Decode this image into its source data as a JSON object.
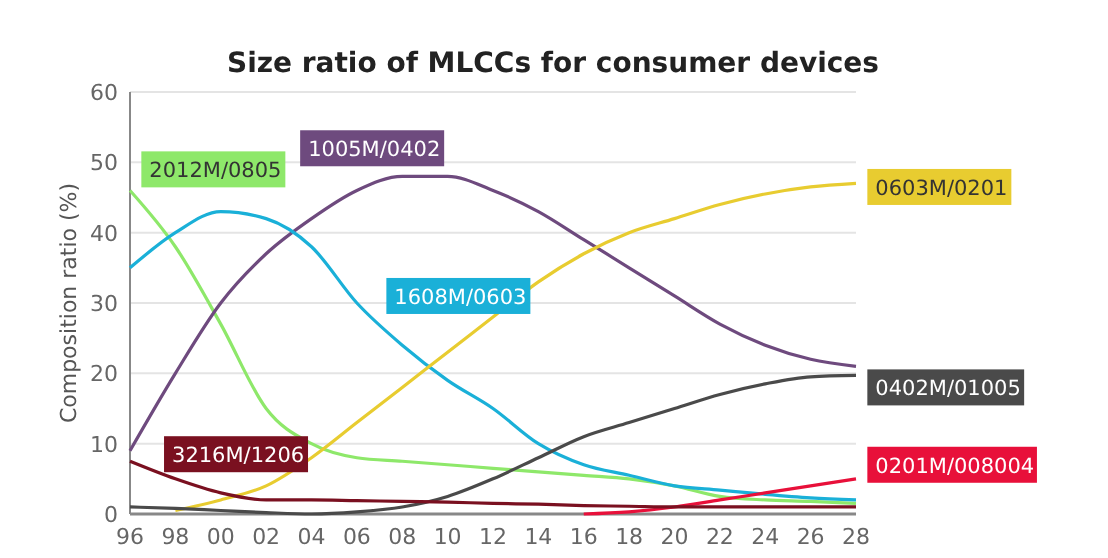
{
  "chart_data": {
    "type": "line",
    "title": "Size ratio of MLCCs for consumer devices",
    "ylabel": "Composition ratio (%)",
    "xlim": [
      1996,
      2028
    ],
    "xticks": [
      {
        "value": 1996,
        "label": "96"
      },
      {
        "value": 1998,
        "label": "98"
      },
      {
        "value": 2000,
        "label": "00"
      },
      {
        "value": 2002,
        "label": "02"
      },
      {
        "value": 2004,
        "label": "04"
      },
      {
        "value": 2006,
        "label": "06"
      },
      {
        "value": 2008,
        "label": "08"
      },
      {
        "value": 2010,
        "label": "10"
      },
      {
        "value": 2012,
        "label": "12"
      },
      {
        "value": 2014,
        "label": "14"
      },
      {
        "value": 2016,
        "label": "16"
      },
      {
        "value": 2018,
        "label": "18"
      },
      {
        "value": 2020,
        "label": "20"
      },
      {
        "value": 2022,
        "label": "22"
      },
      {
        "value": 2024,
        "label": "24"
      },
      {
        "value": 2026,
        "label": "26"
      },
      {
        "value": 2028,
        "label": "28"
      }
    ],
    "ylim": [
      0,
      60
    ],
    "yticks": [
      0,
      10,
      20,
      30,
      40,
      50,
      60
    ],
    "grid": "y",
    "marker": "none",
    "line_style": "solid",
    "x": [
      1996,
      1998,
      2000,
      2002,
      2004,
      2006,
      2008,
      2010,
      2012,
      2014,
      2016,
      2018,
      2020,
      2022,
      2024,
      2026,
      2028
    ],
    "series": [
      {
        "name": "2012M/0805",
        "color": "#8ee86a",
        "values": [
          46,
          38,
          27,
          15,
          10,
          8,
          7.5,
          7,
          6.5,
          6,
          5.5,
          5,
          4,
          2.5,
          2,
          1.8,
          1.5
        ]
      },
      {
        "name": "1005M/0402",
        "color": "#6e4a7e",
        "values": [
          9,
          20,
          30,
          37,
          42,
          46,
          48,
          48,
          46,
          43,
          39,
          35,
          31,
          27,
          24,
          22,
          21
        ]
      },
      {
        "name": "1608M/0603",
        "color": "#1ab0d8",
        "values": [
          35,
          40,
          43,
          42,
          38,
          30,
          24,
          19,
          15,
          10,
          7,
          5.5,
          4,
          3.4,
          2.8,
          2.3,
          2
        ]
      },
      {
        "name": "0603M/0201",
        "color": "#e8cc30",
        "values": [
          null,
          0.5,
          2,
          4,
          8,
          13,
          18,
          23,
          28,
          33,
          37,
          40,
          42,
          44,
          45.5,
          46.5,
          47
        ]
      },
      {
        "name": "0402M/01005",
        "color": "#4a4a4a",
        "values": [
          1,
          0.8,
          0.5,
          0.2,
          0,
          0.3,
          1,
          2.5,
          5,
          8,
          11,
          13,
          15,
          17,
          18.5,
          19.5,
          19.7
        ]
      },
      {
        "name": "0201M/008004",
        "color": "#e8103a",
        "values": [
          null,
          null,
          null,
          null,
          null,
          null,
          null,
          null,
          null,
          null,
          0,
          0.3,
          1,
          2,
          3,
          4,
          5
        ]
      },
      {
        "name": "3216M/1206",
        "color": "#7a1020",
        "values": [
          7.5,
          5,
          3,
          2,
          2,
          1.9,
          1.8,
          1.7,
          1.5,
          1.4,
          1.2,
          1.1,
          1,
          1,
          1,
          1,
          1
        ]
      }
    ]
  }
}
